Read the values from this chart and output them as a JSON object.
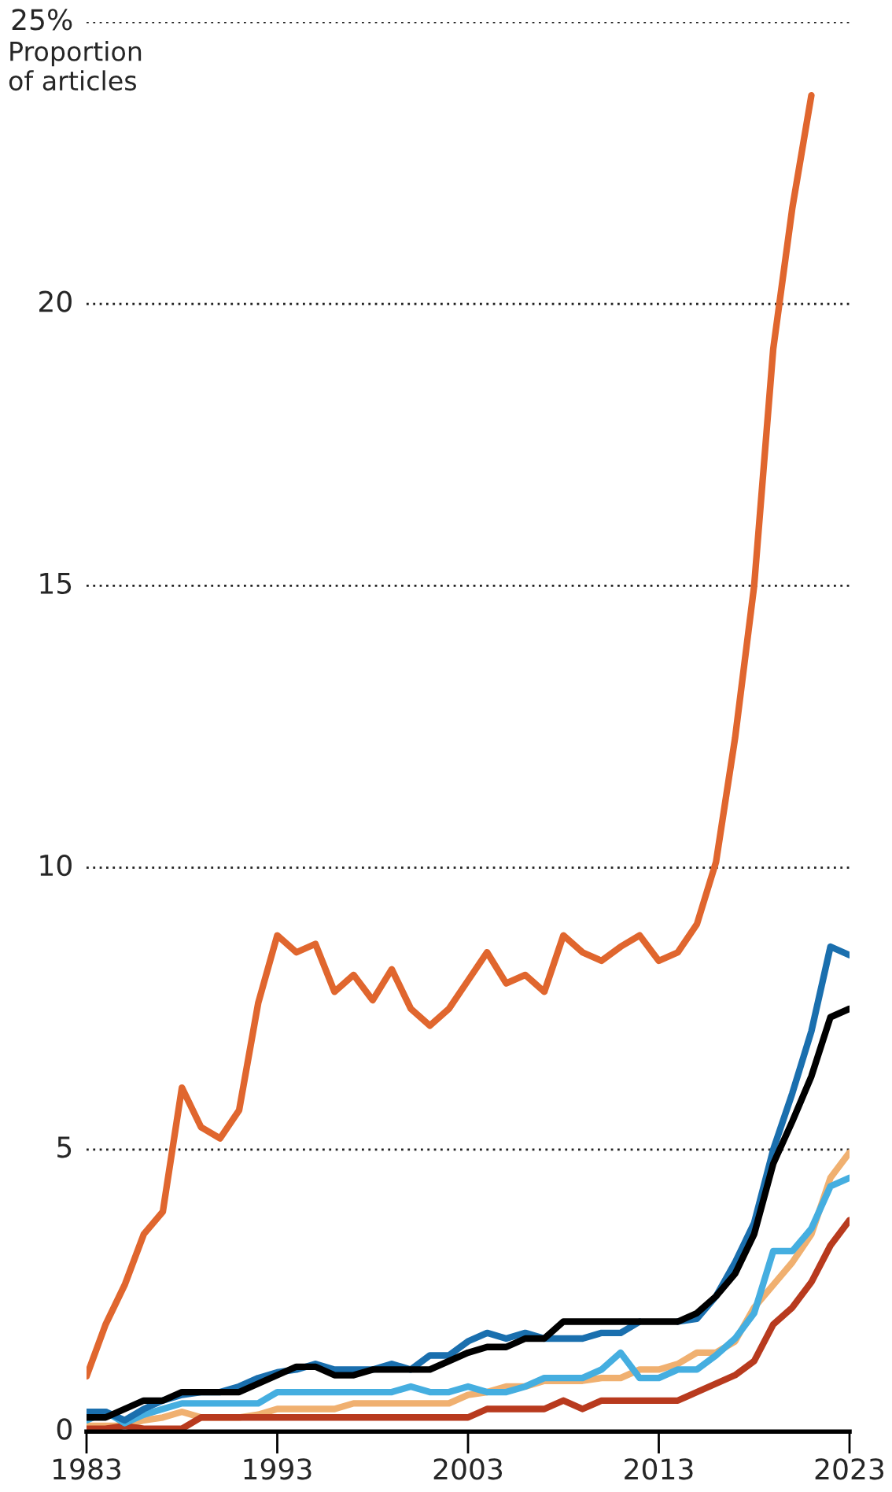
{
  "chart_data": {
    "type": "line",
    "ylabel": "Proportion\nof articles",
    "x": [
      1983,
      1984,
      1985,
      1986,
      1987,
      1988,
      1989,
      1990,
      1991,
      1992,
      1993,
      1994,
      1995,
      1996,
      1997,
      1998,
      1999,
      2000,
      2001,
      2002,
      2003,
      2004,
      2005,
      2006,
      2007,
      2008,
      2009,
      2010,
      2011,
      2012,
      2013,
      2014,
      2015,
      2016,
      2017,
      2018,
      2019,
      2020,
      2021,
      2022,
      2023
    ],
    "series": [
      {
        "color": "#e0662e",
        "values": [
          0.98,
          1.9,
          2.6,
          3.5,
          3.9,
          6.1,
          5.4,
          5.2,
          5.7,
          7.6,
          8.8,
          8.5,
          8.65,
          7.8,
          8.1,
          7.65,
          8.2,
          7.5,
          7.2,
          7.5,
          8.0,
          8.5,
          7.95,
          8.1,
          7.8,
          8.8,
          8.5,
          8.35,
          8.6,
          8.8,
          8.35,
          8.5,
          9.0,
          10.1,
          12.3,
          15.0,
          19.2,
          21.7,
          23.7,
          null,
          null
        ]
      },
      {
        "color": "#f0b070",
        "values": [
          0.1,
          0.1,
          0.1,
          0.2,
          0.25,
          0.35,
          0.25,
          0.25,
          0.25,
          0.3,
          0.4,
          0.4,
          0.4,
          0.4,
          0.5,
          0.5,
          0.5,
          0.5,
          0.5,
          0.5,
          0.65,
          0.7,
          0.8,
          0.8,
          0.9,
          0.9,
          0.9,
          0.95,
          0.95,
          1.1,
          1.1,
          1.2,
          1.4,
          1.4,
          1.6,
          2.2,
          2.6,
          3.0,
          3.5,
          4.5,
          4.95
        ]
      },
      {
        "color": "#b83a1e",
        "values": [
          0.05,
          0.05,
          0.1,
          0.05,
          0.05,
          0.05,
          0.25,
          0.25,
          0.25,
          0.25,
          0.25,
          0.25,
          0.25,
          0.25,
          0.25,
          0.25,
          0.25,
          0.25,
          0.25,
          0.25,
          0.25,
          0.4,
          0.4,
          0.4,
          0.4,
          0.55,
          0.4,
          0.55,
          0.55,
          0.55,
          0.55,
          0.55,
          0.7,
          0.85,
          1.0,
          1.25,
          1.9,
          2.2,
          2.65,
          3.3,
          3.75
        ]
      },
      {
        "color": "#45aee0",
        "values": [
          0.2,
          0.35,
          0.15,
          0.3,
          0.4,
          0.5,
          0.5,
          0.5,
          0.5,
          0.5,
          0.7,
          0.7,
          0.7,
          0.7,
          0.7,
          0.7,
          0.7,
          0.8,
          0.7,
          0.7,
          0.8,
          0.7,
          0.7,
          0.8,
          0.95,
          0.95,
          0.95,
          1.1,
          1.4,
          0.95,
          0.95,
          1.1,
          1.1,
          1.35,
          1.65,
          2.1,
          3.2,
          3.2,
          3.6,
          4.35,
          4.5
        ]
      },
      {
        "color": "#1a6fae",
        "values": [
          0.35,
          0.35,
          0.2,
          0.4,
          0.55,
          0.65,
          0.7,
          0.7,
          0.8,
          0.95,
          1.05,
          1.1,
          1.2,
          1.1,
          1.1,
          1.1,
          1.2,
          1.1,
          1.35,
          1.35,
          1.6,
          1.75,
          1.65,
          1.75,
          1.65,
          1.65,
          1.65,
          1.75,
          1.75,
          1.95,
          null,
          1.95,
          2.0,
          2.4,
          3.0,
          3.7,
          5.0,
          6.0,
          7.1,
          8.6,
          8.45
        ]
      },
      {
        "color": "#000000",
        "values": [
          0.25,
          0.25,
          0.4,
          0.55,
          0.55,
          0.7,
          0.7,
          0.7,
          0.7,
          0.85,
          1.0,
          1.15,
          1.15,
          1.0,
          1.0,
          1.1,
          1.1,
          1.1,
          1.1,
          1.25,
          1.4,
          1.5,
          1.5,
          1.65,
          1.65,
          1.95,
          1.95,
          1.95,
          1.95,
          1.95,
          1.95,
          1.95,
          2.1,
          2.4,
          2.8,
          3.5,
          4.75,
          5.5,
          6.3,
          7.35,
          7.5
        ]
      }
    ],
    "xlim": [
      1983,
      2023
    ],
    "xticks": [
      1983,
      1993,
      2003,
      2013,
      2023
    ],
    "ylim": [
      0,
      25
    ],
    "yticks": [
      0,
      5,
      10,
      15,
      20,
      {
        "value": 25,
        "label": "25%"
      }
    ],
    "grid": "y",
    "line_style": "solid",
    "marker": "none"
  }
}
